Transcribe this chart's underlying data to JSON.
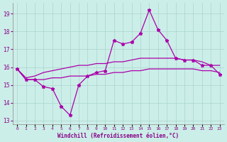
{
  "xlabel": "Windchill (Refroidissement éolien,°C)",
  "x_ticks": [
    0,
    1,
    2,
    3,
    4,
    5,
    6,
    7,
    8,
    9,
    10,
    11,
    12,
    13,
    14,
    15,
    16,
    17,
    18,
    19,
    20,
    21,
    22,
    23
  ],
  "ylim": [
    12.8,
    19.6
  ],
  "yticks": [
    13,
    14,
    15,
    16,
    17,
    18,
    19
  ],
  "background_color": "#cceee8",
  "grid_color": "#aad4ce",
  "line_color": "#aa00aa",
  "series1": [
    15.9,
    15.3,
    15.3,
    14.9,
    14.8,
    13.8,
    13.3,
    15.0,
    15.5,
    15.7,
    15.8,
    17.5,
    17.3,
    17.4,
    17.9,
    19.2,
    18.1,
    17.5,
    16.5,
    16.4,
    16.4,
    16.1,
    16.1,
    15.6
  ],
  "series2": [
    15.9,
    15.4,
    15.5,
    15.7,
    15.8,
    15.9,
    16.0,
    16.1,
    16.1,
    16.2,
    16.2,
    16.3,
    16.3,
    16.4,
    16.5,
    16.5,
    16.5,
    16.5,
    16.5,
    16.4,
    16.4,
    16.3,
    16.1,
    16.1
  ],
  "series3": [
    15.9,
    15.3,
    15.3,
    15.3,
    15.4,
    15.4,
    15.5,
    15.5,
    15.5,
    15.6,
    15.6,
    15.7,
    15.7,
    15.8,
    15.8,
    15.9,
    15.9,
    15.9,
    15.9,
    15.9,
    15.9,
    15.8,
    15.8,
    15.7
  ]
}
